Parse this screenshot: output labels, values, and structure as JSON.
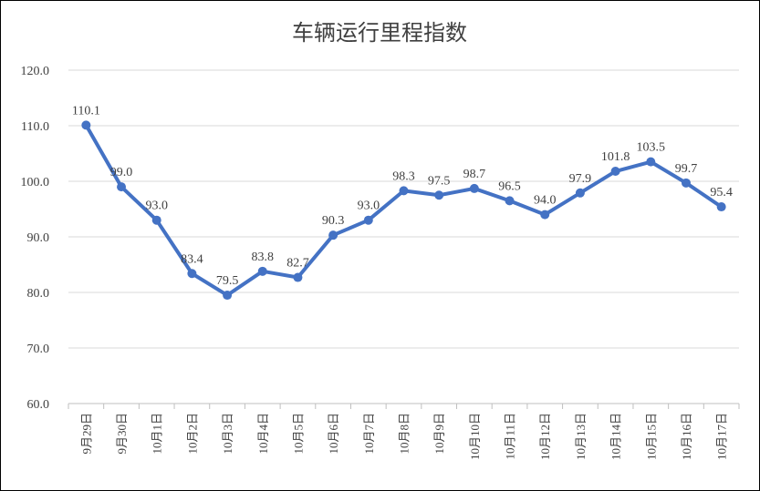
{
  "chart_data": {
    "type": "line",
    "title": "车辆运行里程指数",
    "xlabel": "",
    "ylabel": "",
    "ylim": [
      60,
      120
    ],
    "yticks": [
      "60.0",
      "70.0",
      "80.0",
      "90.0",
      "100.0",
      "110.0",
      "120.0"
    ],
    "grid": true,
    "legend": "none",
    "color": "#4472c4",
    "categories": [
      "9月29日",
      "9月30日",
      "10月1日",
      "10月2日",
      "10月3日",
      "10月4日",
      "10月5日",
      "10月6日",
      "10月7日",
      "10月8日",
      "10月9日",
      "10月10日",
      "10月11日",
      "10月12日",
      "10月13日",
      "10月14日",
      "10月15日",
      "10月16日",
      "10月17日"
    ],
    "values": [
      110.1,
      99.0,
      93.0,
      83.4,
      79.5,
      83.8,
      82.7,
      90.3,
      93.0,
      98.3,
      97.5,
      98.7,
      96.5,
      94.0,
      97.9,
      101.8,
      103.5,
      99.7,
      95.4
    ],
    "data_labels": [
      "110.1",
      "99.0",
      "93.0",
      "83.4",
      "79.5",
      "83.8",
      "82.7",
      "90.3",
      "93.0",
      "98.3",
      "97.5",
      "98.7",
      "96.5",
      "94.0",
      "97.9",
      "101.8",
      "103.5",
      "99.7",
      "95.4"
    ]
  }
}
